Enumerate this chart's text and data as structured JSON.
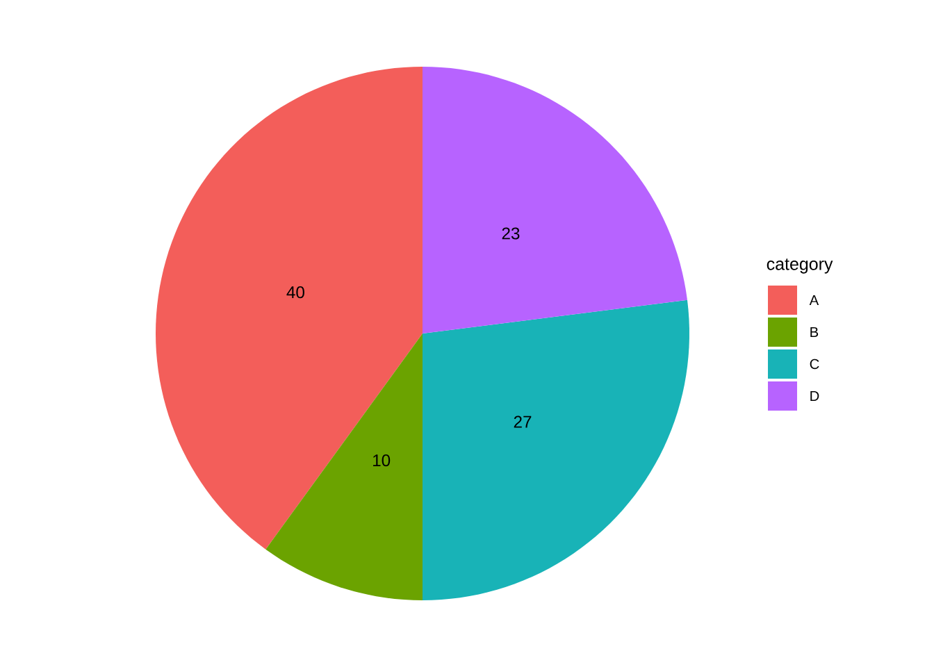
{
  "chart_data": {
    "type": "pie",
    "legend_title": "category",
    "categories": [
      "A",
      "B",
      "C",
      "D"
    ],
    "values": [
      40,
      10,
      27,
      23
    ],
    "colors": [
      "#f35e5a",
      "#6ba300",
      "#18b3b7",
      "#b763ff"
    ],
    "data_labels": true,
    "legend": "right"
  }
}
